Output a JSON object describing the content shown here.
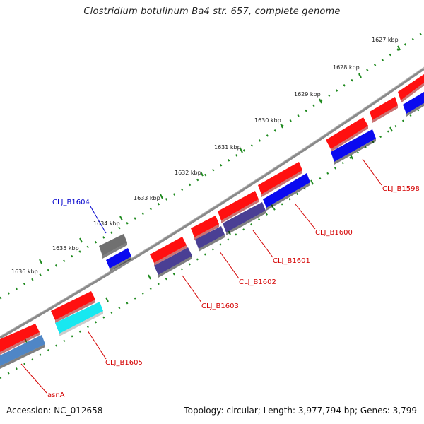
{
  "title": "Clostridium botulinum Ba4 str. 657, complete genome",
  "footer": {
    "accession": "Accession: NC_012658",
    "summary": "Topology: circular; Length: 3,977,794 bp; Genes: 3,799"
  },
  "scale": {
    "ticks": [
      "1627 kbp",
      "1628 kbp",
      "1629 kbp",
      "1630 kbp",
      "1631 kbp",
      "1632 kbp",
      "1633 kbp",
      "1634 kbp",
      "1635 kbp",
      "1636 kbp"
    ]
  },
  "gene_labels": [
    {
      "name": "CLJ_B1598",
      "color": "#d40000"
    },
    {
      "name": "CLJ_B1600",
      "color": "#d40000"
    },
    {
      "name": "CLJ_B1601",
      "color": "#d40000"
    },
    {
      "name": "CLJ_B1602",
      "color": "#d40000"
    },
    {
      "name": "CLJ_B1603",
      "color": "#d40000"
    },
    {
      "name": "CLJ_B1604",
      "color": "#0000cc"
    },
    {
      "name": "CLJ_B1605",
      "color": "#d40000"
    },
    {
      "name": "asnA",
      "color": "#d40000"
    }
  ],
  "colors": {
    "cds": "#ff1010",
    "gene_blue": "#0a0af0",
    "gene_navy": "#4a3f94",
    "gene_cyan": "#18e8f0",
    "gene_steel": "#4f86c6",
    "gene_gray": "#707070",
    "backbone": "#8a8a8a",
    "tick_green": "#1f8a1f"
  }
}
